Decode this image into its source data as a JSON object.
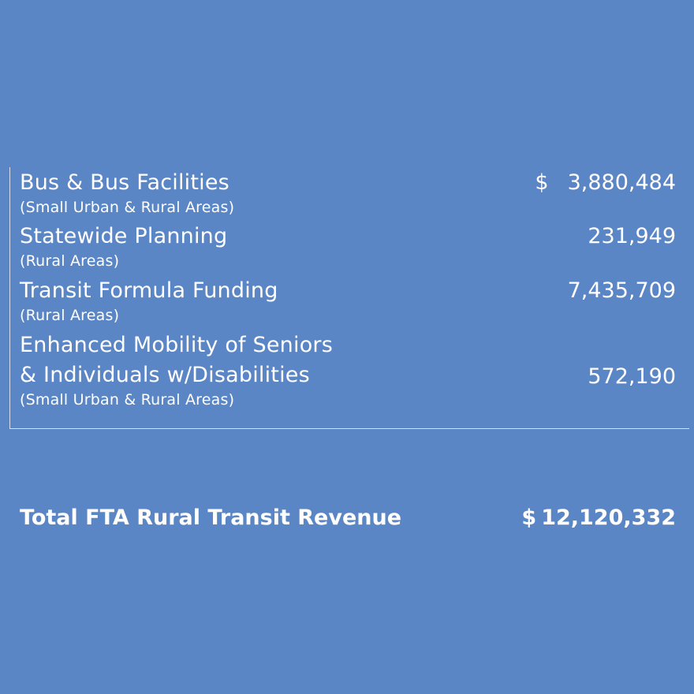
{
  "items": [
    {
      "label": "Bus & Bus Facilities",
      "sublabel": "(Small Urban & Rural Areas)",
      "currency": "$",
      "amount": "3,880,484"
    },
    {
      "label": "Statewide Planning",
      "sublabel": "(Rural Areas)",
      "amount": "231,949"
    },
    {
      "label": "Transit Formula Funding",
      "sublabel": "(Rural Areas)",
      "amount": "7,435,709"
    },
    {
      "label_line1": "Enhanced Mobility of Seniors",
      "label_line2": "& Individuals w/Disabilities",
      "sublabel": "(Small Urban & Rural Areas)",
      "amount": "572,190"
    }
  ],
  "total": {
    "label": "Total FTA Rural Transit Revenue",
    "currency": "$",
    "amount": "12,120,332"
  }
}
